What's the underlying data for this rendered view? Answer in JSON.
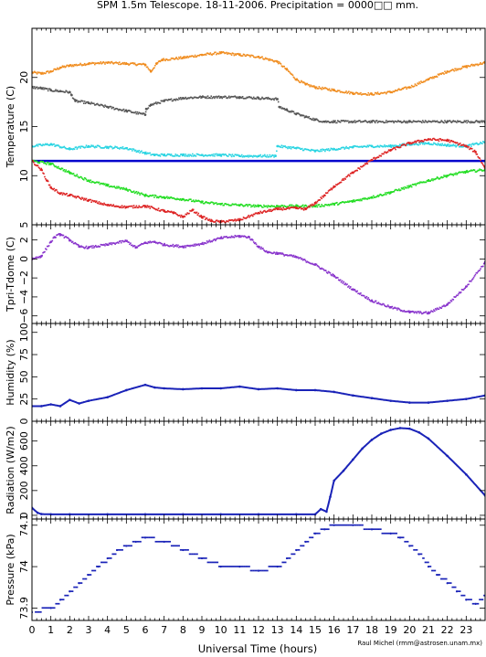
{
  "title": "SPM 1.5m Telescope. 18-11-2006. Precipitation = 0000□□ mm.",
  "xlabel": "Universal Time (hours)",
  "credit": "Raul Michel (rmm@astrosen.unam.mx)",
  "chart_data": [
    {
      "type": "scatter",
      "ylabel": "Temperature (C)",
      "xlim": [
        0,
        24
      ],
      "ylim": [
        5,
        25
      ],
      "yticks": [
        5,
        10,
        15,
        20
      ],
      "series": [
        {
          "color": "#f08c1e",
          "x": [
            0,
            0.5,
            1,
            1.5,
            2,
            3,
            4,
            5,
            6,
            6.3,
            6.6,
            6.9,
            8,
            9,
            10,
            11,
            12,
            13,
            13.5,
            14,
            14.5,
            15,
            16,
            17,
            18,
            19,
            20,
            21,
            22,
            23,
            24
          ],
          "y": [
            20.5,
            20.4,
            20.6,
            21.0,
            21.2,
            21.4,
            21.5,
            21.4,
            21.3,
            20.6,
            21.4,
            21.8,
            22.0,
            22.3,
            22.5,
            22.3,
            22.1,
            21.6,
            20.8,
            19.8,
            19.3,
            19.0,
            18.7,
            18.4,
            18.3,
            18.5,
            19.0,
            19.8,
            20.6,
            21.1,
            21.5
          ]
        },
        {
          "color": "#555555",
          "x": [
            0,
            0.5,
            1,
            1.5,
            2,
            2.1,
            2.3,
            3,
            4,
            5,
            6,
            6.05,
            6.3,
            7,
            8,
            9,
            10,
            11,
            12,
            13,
            13.1,
            13.5,
            14,
            14.5,
            15,
            15.5,
            16,
            18,
            20,
            22,
            24
          ],
          "y": [
            19.0,
            18.9,
            18.7,
            18.6,
            18.5,
            18.2,
            17.6,
            17.4,
            17.0,
            16.6,
            16.2,
            16.8,
            17.2,
            17.6,
            17.9,
            18.0,
            18.0,
            18.0,
            17.9,
            17.8,
            17.0,
            16.7,
            16.3,
            16.0,
            15.7,
            15.5,
            15.5,
            15.5,
            15.5,
            15.5,
            15.5
          ]
        },
        {
          "color": "#29d4e2",
          "x": [
            0,
            1,
            2,
            3,
            4,
            5,
            6,
            6.5,
            7,
            8,
            9,
            10,
            11,
            12,
            12.9,
            13,
            14,
            15,
            16,
            17,
            18,
            19,
            20,
            21,
            22,
            23,
            24
          ],
          "y": [
            13.0,
            13.2,
            12.7,
            13.0,
            12.9,
            12.8,
            12.3,
            12.1,
            12.1,
            12.1,
            12.1,
            12.1,
            12.0,
            12.0,
            12.0,
            13.0,
            12.8,
            12.5,
            12.7,
            12.9,
            13.0,
            13.0,
            13.2,
            13.3,
            13.1,
            13.0,
            13.4
          ]
        },
        {
          "color": "#0000cc",
          "x": [
            0,
            24
          ],
          "y": [
            11.5,
            11.5
          ]
        },
        {
          "color": "#22dd22",
          "x": [
            0,
            1,
            2,
            3,
            4,
            5,
            6,
            7,
            8,
            9,
            10,
            11,
            12,
            13,
            14,
            15,
            16,
            17,
            18,
            19,
            20,
            21,
            22,
            23,
            24
          ],
          "y": [
            11.5,
            11.2,
            10.3,
            9.5,
            9.0,
            8.6,
            8.0,
            7.8,
            7.6,
            7.3,
            7.1,
            7.0,
            6.9,
            6.9,
            6.9,
            6.9,
            7.1,
            7.4,
            7.8,
            8.3,
            8.9,
            9.5,
            10.0,
            10.4,
            10.6
          ]
        },
        {
          "color": "#dd2222",
          "x": [
            0,
            0.5,
            0.8,
            1,
            1.5,
            2,
            3,
            4,
            5,
            6,
            7,
            7.5,
            8,
            8.5,
            9,
            9.5,
            10,
            11,
            12,
            13,
            14,
            14.5,
            15,
            15.5,
            16,
            17,
            18,
            19,
            20,
            21,
            22,
            23,
            23.5,
            24
          ],
          "y": [
            11.5,
            10.6,
            9.5,
            8.8,
            8.2,
            8.0,
            7.5,
            7.0,
            6.8,
            6.9,
            6.4,
            6.2,
            5.8,
            6.5,
            5.8,
            5.4,
            5.3,
            5.5,
            6.2,
            6.6,
            6.7,
            6.6,
            7.2,
            8.0,
            8.9,
            10.3,
            11.6,
            12.6,
            13.3,
            13.7,
            13.6,
            13.0,
            12.4,
            10.8
          ]
        }
      ]
    },
    {
      "type": "scatter",
      "ylabel": "Tpri-Tdome (C)",
      "xlim": [
        0,
        24
      ],
      "ylim": [
        -6.8,
        3.6
      ],
      "yticks": [
        -6,
        -4,
        -2,
        0,
        2
      ],
      "series": [
        {
          "color": "#8833cc",
          "x": [
            0,
            0.5,
            1,
            1.2,
            1.5,
            2,
            2.5,
            3,
            4,
            5,
            5.5,
            6,
            6.5,
            7,
            8,
            9,
            10,
            11,
            11.5,
            12,
            12.5,
            13,
            14,
            15,
            16,
            17,
            18,
            19,
            20,
            21,
            22,
            23,
            24
          ],
          "y": [
            0.0,
            0.3,
            1.8,
            2.3,
            2.6,
            2.0,
            1.3,
            1.2,
            1.5,
            1.9,
            1.2,
            1.7,
            1.8,
            1.5,
            1.3,
            1.6,
            2.2,
            2.4,
            2.3,
            1.3,
            0.7,
            0.6,
            0.2,
            -0.6,
            -1.8,
            -3.2,
            -4.4,
            -5.1,
            -5.6,
            -5.7,
            -4.8,
            -2.9,
            -0.4
          ]
        }
      ]
    },
    {
      "type": "line",
      "ylabel": "Humidity (%)",
      "xlim": [
        0,
        24
      ],
      "ylim": [
        0,
        110
      ],
      "yticks": [
        0,
        25,
        50,
        75,
        100
      ],
      "series": [
        {
          "color": "#1a23b8",
          "x": [
            0,
            0.5,
            1,
            1.5,
            2,
            2.5,
            3,
            4,
            5,
            6,
            6.5,
            7,
            8,
            9,
            10,
            11,
            12,
            13,
            14,
            15,
            16,
            17,
            18,
            19,
            20,
            21,
            22,
            23,
            24
          ],
          "y": [
            17,
            17,
            19,
            17,
            24,
            20,
            23,
            27,
            35,
            41,
            38,
            37,
            36,
            37,
            37,
            39,
            36,
            37,
            35,
            35,
            33,
            29,
            26,
            23,
            21,
            21,
            23,
            25,
            29
          ]
        }
      ]
    },
    {
      "type": "line",
      "ylabel": "Radiation (W/m2)",
      "xlim": [
        0,
        24
      ],
      "ylim": [
        -30,
        760
      ],
      "yticks": [
        0,
        200,
        400,
        600
      ],
      "series": [
        {
          "color": "#1a23b8",
          "x": [
            0,
            0.3,
            0.5,
            1,
            2,
            4,
            6,
            8,
            10,
            12,
            14,
            15,
            15.3,
            15.6,
            15.8,
            16,
            16.5,
            17,
            17.5,
            18,
            18.5,
            19,
            19.5,
            20,
            20.5,
            21,
            22,
            23,
            24
          ],
          "y": [
            60,
            20,
            10,
            8,
            8,
            8,
            8,
            8,
            8,
            8,
            8,
            8,
            50,
            30,
            150,
            280,
            360,
            450,
            540,
            610,
            660,
            690,
            705,
            700,
            670,
            620,
            480,
            330,
            160
          ]
        }
      ]
    },
    {
      "type": "scatter",
      "ylabel": "Pressure (kPa)",
      "xlim": [
        0,
        24
      ],
      "ylim": [
        73.87,
        74.115
      ],
      "yticks": [
        73.9,
        74,
        74.1
      ],
      "series": [
        {
          "color": "#1a23b8",
          "x": [
            0,
            1,
            1.5,
            2,
            2.5,
            3,
            3.5,
            4,
            4.5,
            5,
            5.5,
            6,
            7,
            8,
            9,
            10,
            11,
            12,
            13,
            13.5,
            14,
            14.5,
            15,
            15.5,
            16,
            17,
            18,
            19,
            19.5,
            20,
            20.5,
            21,
            21.5,
            22,
            22.5,
            23,
            23.5,
            24
          ],
          "y": [
            73.89,
            73.9,
            73.92,
            73.94,
            73.96,
            73.98,
            74.0,
            74.02,
            74.04,
            74.05,
            74.06,
            74.07,
            74.06,
            74.04,
            74.02,
            74.0,
            74.0,
            73.99,
            74.0,
            74.02,
            74.04,
            74.06,
            74.08,
            74.09,
            74.1,
            74.1,
            74.09,
            74.08,
            74.07,
            74.05,
            74.03,
            74.0,
            73.98,
            73.96,
            73.94,
            73.92,
            73.91,
            73.93
          ]
        }
      ]
    }
  ]
}
